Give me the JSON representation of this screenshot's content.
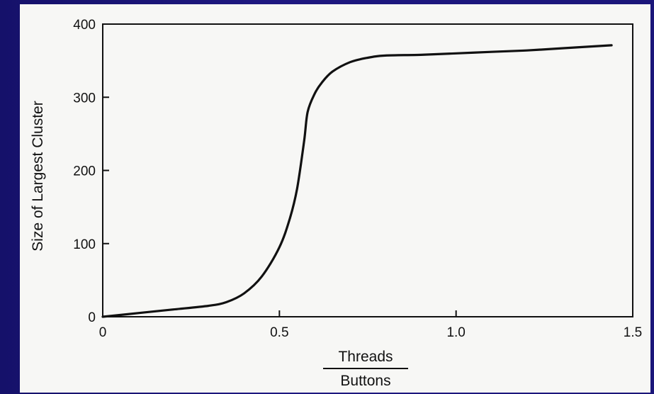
{
  "chart_data": {
    "type": "line",
    "xlabel_numerator": "Threads",
    "xlabel_denominator": "Buttons",
    "ylabel": "Size of Largest Cluster",
    "xlim": [
      0,
      1.5
    ],
    "ylim": [
      0,
      400
    ],
    "x_ticks": [
      "0",
      "0.5",
      "1.0",
      "1.5"
    ],
    "y_ticks": [
      "0",
      "100",
      "200",
      "300",
      "400"
    ],
    "grid": false,
    "series": [
      {
        "x": [
          0,
          0.1,
          0.2,
          0.3,
          0.35,
          0.4,
          0.45,
          0.5,
          0.53,
          0.55,
          0.57,
          0.58,
          0.6,
          0.62,
          0.65,
          0.7,
          0.75,
          0.8,
          0.9,
          1.0,
          1.1,
          1.2,
          1.3,
          1.44
        ],
        "y": [
          0,
          5,
          10,
          15,
          20,
          32,
          55,
          95,
          135,
          175,
          240,
          280,
          305,
          320,
          335,
          348,
          354,
          357,
          358,
          360,
          362,
          364,
          367,
          371
        ]
      }
    ]
  },
  "colors": {
    "background": "#1a1570",
    "panel": "#f7f7f5",
    "ink": "#111111"
  }
}
